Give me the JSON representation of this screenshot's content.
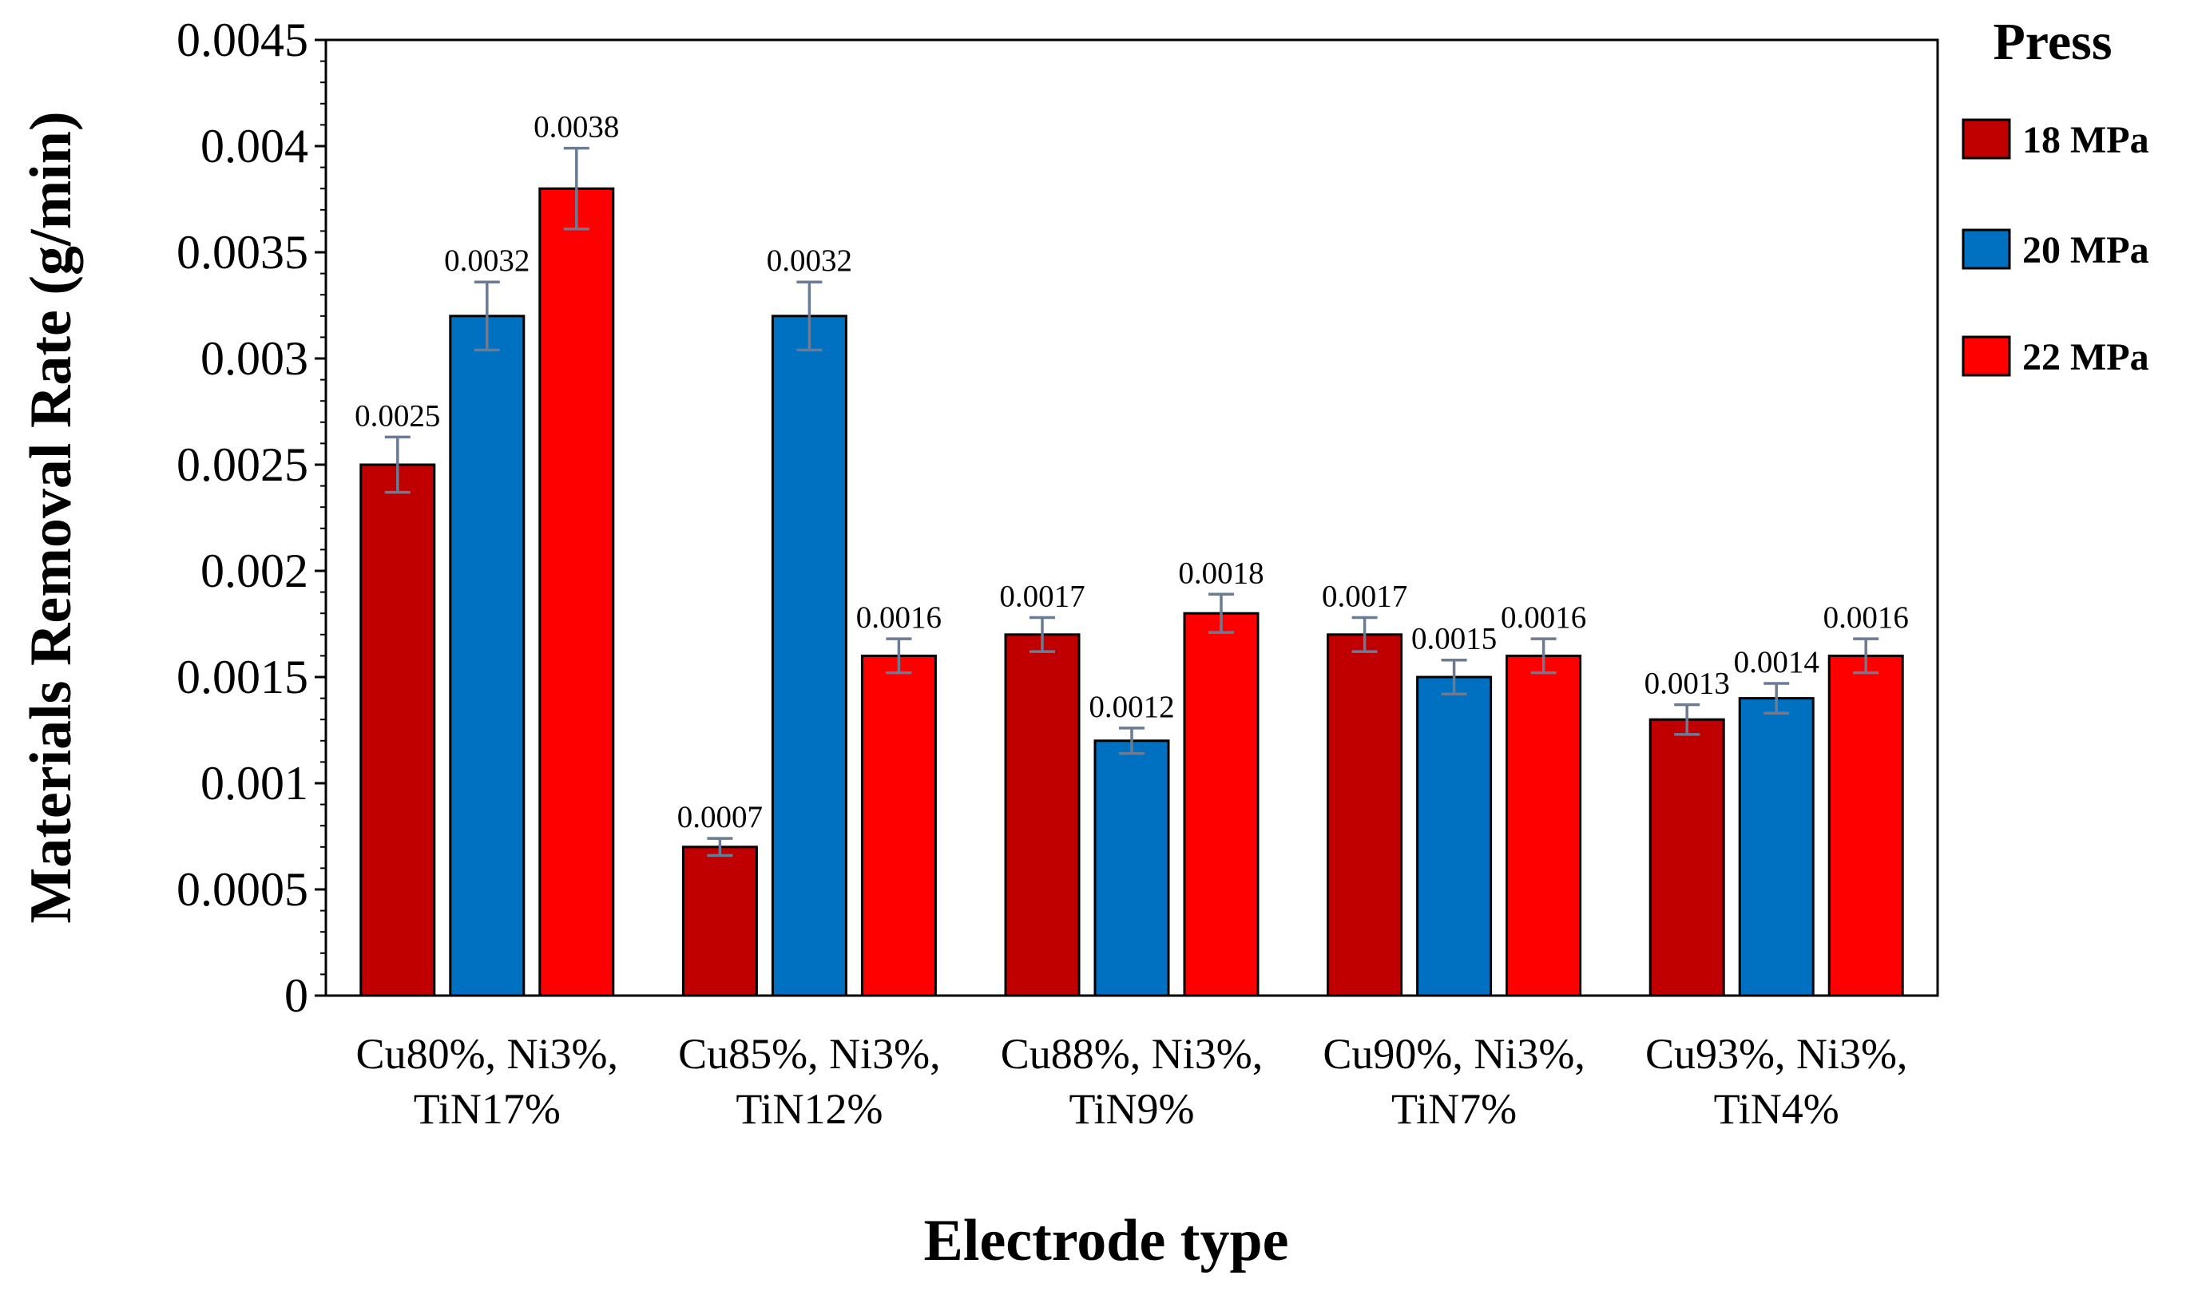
{
  "chart_data": {
    "type": "bar",
    "title": "",
    "xlabel": "Electrode type",
    "ylabel": "Materials Removal Rate  (g/min)",
    "ylim": [
      0,
      0.0045
    ],
    "yticks": [
      "0",
      "0.0005",
      "0.001",
      "0.0015",
      "0.002",
      "0.0025",
      "0.003",
      "0.0035",
      "0.004",
      "0.0045"
    ],
    "ytick_values": [
      0,
      0.0005,
      0.001,
      0.0015,
      0.002,
      0.0025,
      0.003,
      0.0035,
      0.004,
      0.0045
    ],
    "categories": [
      [
        "Cu80%, Ni3%,",
        "TiN17%"
      ],
      [
        "Cu85%, Ni3%,",
        "TiN12%"
      ],
      [
        "Cu88%, Ni3%,",
        "TiN9%"
      ],
      [
        "Cu90%, Ni3%,",
        "TiN7%"
      ],
      [
        "Cu93%, Ni3%,",
        "TiN4%"
      ]
    ],
    "legend_title": "Press",
    "legend_position": "right",
    "grid": false,
    "series": [
      {
        "name": "18 MPa",
        "color": "#c00000",
        "values": [
          0.0025,
          0.0007,
          0.0017,
          0.0017,
          0.0013
        ],
        "labels": [
          "0.0025",
          "0.0007",
          "0.0017",
          "0.0017",
          "0.0013"
        ],
        "errors": [
          0.00013,
          4e-05,
          8e-05,
          8e-05,
          7e-05
        ]
      },
      {
        "name": "20 MPa",
        "color": "#0070c0",
        "values": [
          0.0032,
          0.0032,
          0.0012,
          0.0015,
          0.0014
        ],
        "labels": [
          "0.0032",
          "0.0032",
          "0.0012",
          "0.0015",
          "0.0014"
        ],
        "errors": [
          0.00016,
          0.00016,
          6e-05,
          8e-05,
          7e-05
        ]
      },
      {
        "name": "22 MPa",
        "color": "#ff0000",
        "values": [
          0.0038,
          0.0016,
          0.0018,
          0.0016,
          0.0016
        ],
        "labels": [
          "0.0038",
          "0.0016",
          "0.0018",
          "0.0016",
          "0.0016"
        ],
        "errors": [
          0.00019,
          8e-05,
          9e-05,
          8e-05,
          8e-05
        ]
      }
    ]
  }
}
